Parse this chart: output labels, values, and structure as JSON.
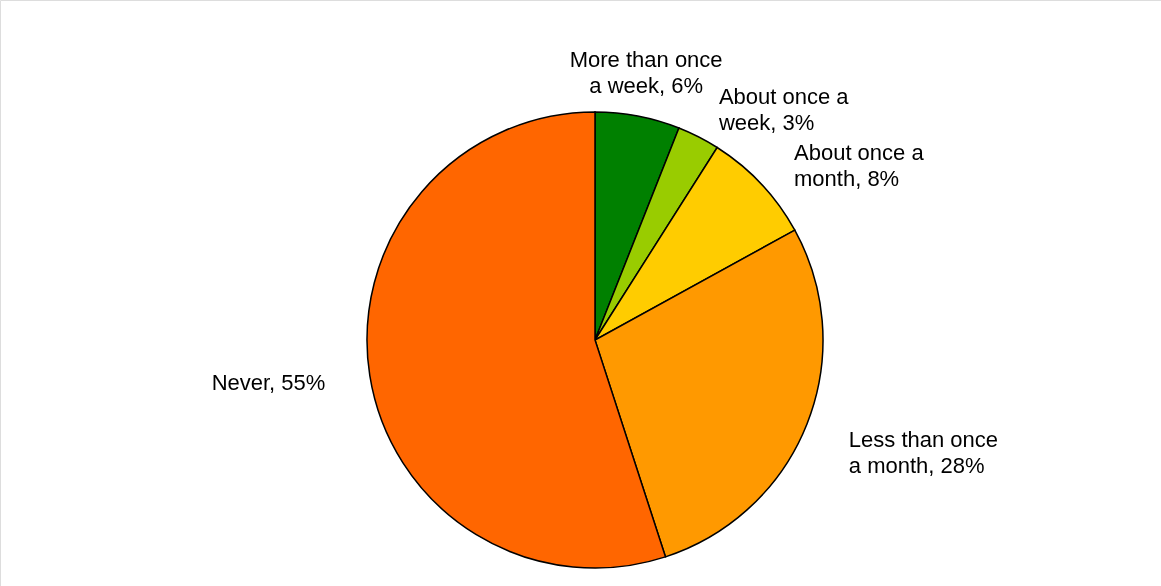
{
  "chart_data": {
    "type": "pie",
    "categories": [
      "More than once a week",
      "About once a week",
      "About once a month",
      "Less than once a month",
      "Never"
    ],
    "values": [
      6,
      3,
      8,
      28,
      55
    ],
    "value_labels": [
      "6%",
      "3%",
      "8%",
      "28%",
      "55%"
    ],
    "colors": [
      "#008000",
      "#99cc00",
      "#ffcc00",
      "#ff9900",
      "#ff6600"
    ]
  }
}
